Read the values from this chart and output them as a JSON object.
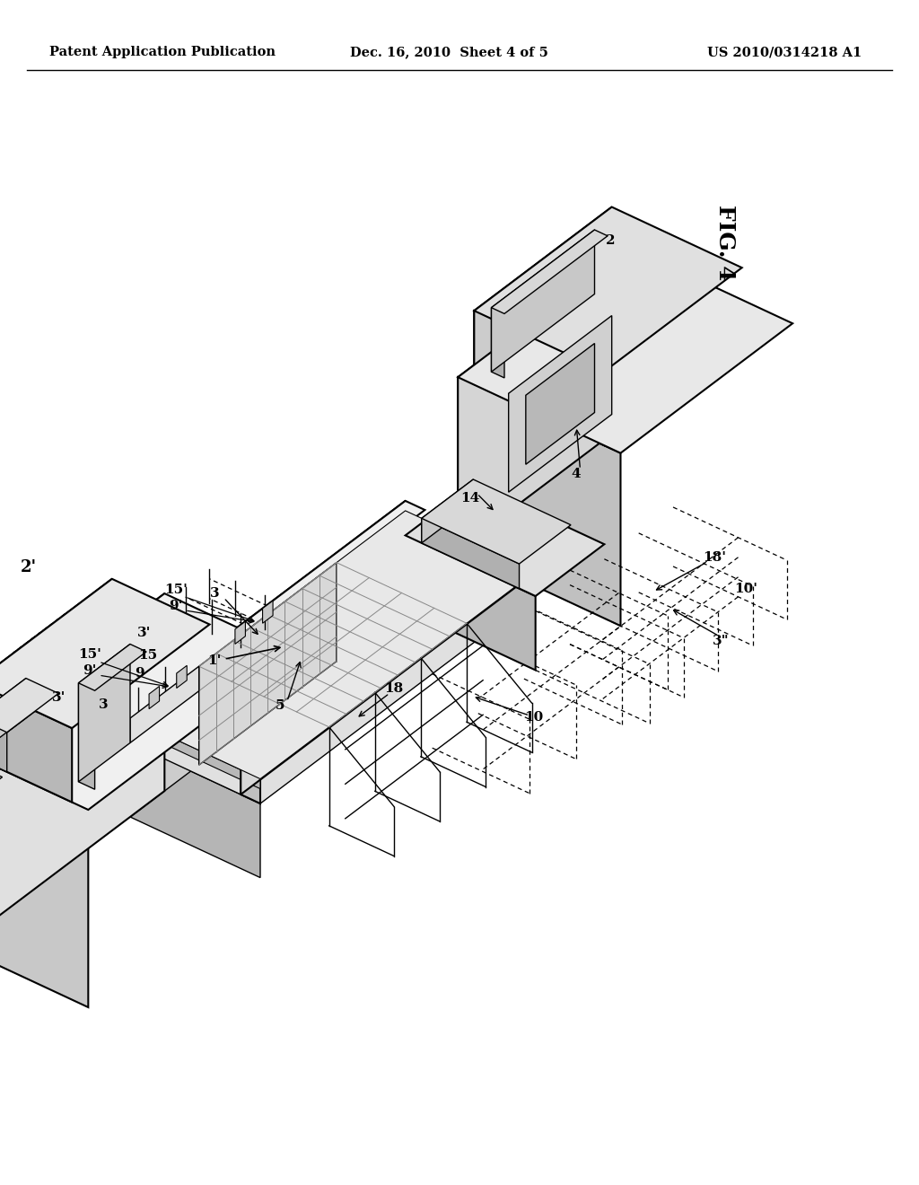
{
  "bg_color": "#ffffff",
  "header_left": "Patent Application Publication",
  "header_center": "Dec. 16, 2010  Sheet 4 of 5",
  "header_right": "US 2010/0314218 A1",
  "fig_label": "FIG. 4",
  "header_fontsize": 10.5,
  "label_fontsize": 11,
  "fig_label_fontsize": 18
}
